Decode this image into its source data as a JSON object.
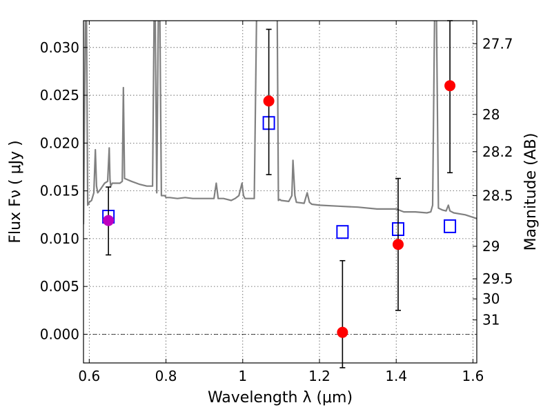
{
  "chart_data": {
    "type": "scatter",
    "xlabel": "Wavelength  λ (μm)",
    "ylabel": "Flux  Fν  ( μJy )",
    "ylabel2": "Magnitude (AB)",
    "xlim": [
      0.585,
      1.61
    ],
    "ylim": [
      -0.003,
      0.0328
    ],
    "grid": true,
    "x_ticks": [
      {
        "value": 0.6,
        "label": "0.6"
      },
      {
        "value": 0.8,
        "label": "0.8"
      },
      {
        "value": 1.0,
        "label": "1"
      },
      {
        "value": 1.2,
        "label": "1.2"
      },
      {
        "value": 1.4,
        "label": "1.4"
      },
      {
        "value": 1.6,
        "label": "1.6"
      }
    ],
    "y_ticks": [
      {
        "value": 0.0,
        "label": "0.000"
      },
      {
        "value": 0.005,
        "label": "0.005"
      },
      {
        "value": 0.01,
        "label": "0.010"
      },
      {
        "value": 0.015,
        "label": "0.015"
      },
      {
        "value": 0.02,
        "label": "0.020"
      },
      {
        "value": 0.025,
        "label": "0.025"
      },
      {
        "value": 0.03,
        "label": "0.030"
      }
    ],
    "mag_ticks": [
      {
        "flux": 0.0304,
        "label": "27.7"
      },
      {
        "flux": 0.023,
        "label": "28"
      },
      {
        "flux": 0.0191,
        "label": "28.2"
      },
      {
        "flux": 0.0145,
        "label": "28.5"
      },
      {
        "flux": 0.0092,
        "label": "29"
      },
      {
        "flux": 0.0058,
        "label": "29.5"
      },
      {
        "flux": 0.0037,
        "label": "30"
      },
      {
        "flux": 0.0015,
        "label": "31"
      }
    ],
    "zero_line": 0.0,
    "series": [
      {
        "kind": "line",
        "color": "#808080",
        "x": [
          0.585,
          0.59,
          0.593,
          0.596,
          0.6,
          0.606,
          0.612,
          0.616,
          0.619,
          0.622,
          0.63,
          0.64,
          0.648,
          0.652,
          0.654,
          0.656,
          0.66,
          0.67,
          0.68,
          0.686,
          0.689,
          0.692,
          0.698,
          0.71,
          0.73,
          0.75,
          0.765,
          0.769,
          0.772,
          0.776,
          0.78,
          0.784,
          0.788,
          0.792,
          0.797,
          0.8,
          0.81,
          0.83,
          0.85,
          0.87,
          0.89,
          0.91,
          0.925,
          0.931,
          0.936,
          0.95,
          0.96,
          0.97,
          0.98,
          0.99,
          0.998,
          1.002,
          1.006,
          1.015,
          1.03,
          1.036,
          1.04,
          1.045,
          1.06,
          1.08,
          1.09,
          1.093,
          1.097,
          1.1,
          1.12,
          1.128,
          1.131,
          1.136,
          1.14,
          1.16,
          1.168,
          1.174,
          1.18,
          1.2,
          1.25,
          1.3,
          1.35,
          1.38,
          1.4,
          1.42,
          1.45,
          1.48,
          1.49,
          1.495,
          1.5,
          1.505,
          1.51,
          1.52,
          1.53,
          1.536,
          1.54,
          1.55,
          1.58,
          1.61
        ],
        "y": [
          0.0115,
          0.033,
          0.033,
          0.0135,
          0.0138,
          0.014,
          0.0148,
          0.0193,
          0.0155,
          0.0148,
          0.0152,
          0.0158,
          0.016,
          0.0195,
          0.0162,
          0.0155,
          0.0158,
          0.0158,
          0.0158,
          0.016,
          0.0258,
          0.0163,
          0.0162,
          0.016,
          0.0157,
          0.0155,
          0.0155,
          0.033,
          0.033,
          0.0148,
          0.033,
          0.033,
          0.0145,
          0.0145,
          0.0145,
          0.0143,
          0.0143,
          0.0142,
          0.0143,
          0.0142,
          0.0142,
          0.0142,
          0.0142,
          0.0158,
          0.0142,
          0.0142,
          0.0141,
          0.014,
          0.0142,
          0.0145,
          0.0158,
          0.0145,
          0.0142,
          0.0142,
          0.0142,
          0.033,
          0.033,
          0.033,
          0.033,
          0.033,
          0.033,
          0.014,
          0.0141,
          0.014,
          0.0139,
          0.0145,
          0.0182,
          0.0145,
          0.0138,
          0.0137,
          0.0148,
          0.0138,
          0.0136,
          0.0135,
          0.0134,
          0.0133,
          0.0131,
          0.0131,
          0.0131,
          0.0128,
          0.0128,
          0.0127,
          0.0128,
          0.0135,
          0.033,
          0.033,
          0.0132,
          0.013,
          0.0129,
          0.0135,
          0.0129,
          0.0127,
          0.0125,
          0.0121
        ]
      },
      {
        "name": "photometry",
        "kind": "points",
        "color": "#ff0000",
        "points": [
          {
            "x": 1.068,
            "y": 0.0244,
            "err_lo": 0.0167,
            "err_hi": 0.0319
          },
          {
            "x": 1.26,
            "y": 0.0002,
            "err_lo": -0.0035,
            "err_hi": 0.0077
          },
          {
            "x": 1.405,
            "y": 0.0094,
            "err_lo": 0.0025,
            "err_hi": 0.0163
          },
          {
            "x": 1.54,
            "y": 0.026,
            "err_lo": 0.0169,
            "err_hi": 0.0328
          }
        ]
      },
      {
        "name": "photometry-magenta",
        "kind": "points",
        "color": "#bf00bf",
        "points": [
          {
            "x": 0.65,
            "y": 0.0119,
            "err_lo": 0.0083,
            "err_hi": 0.0154
          }
        ]
      },
      {
        "name": "model",
        "kind": "squares",
        "color": "#0000ff",
        "points": [
          {
            "x": 0.65,
            "y": 0.0123
          },
          {
            "x": 1.068,
            "y": 0.0221
          },
          {
            "x": 1.26,
            "y": 0.0107
          },
          {
            "x": 1.405,
            "y": 0.011
          },
          {
            "x": 1.54,
            "y": 0.0113
          }
        ]
      }
    ]
  }
}
